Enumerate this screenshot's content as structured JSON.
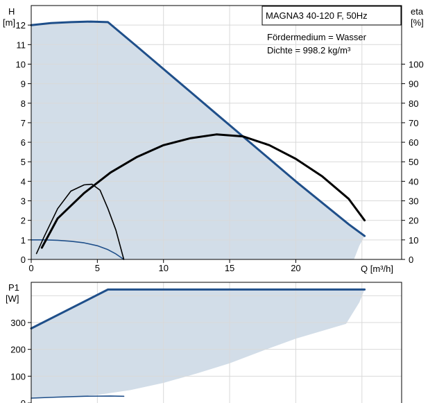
{
  "chart_data": [
    {
      "type": "line",
      "title": "MAGNA3 40-120 F, 50Hz",
      "annotations": [
        "Fördermedium = Wasser",
        "Dichte = 998.2 kg/m³"
      ],
      "xlabel": "Q [m³/h]",
      "ylabel": "H\n[m]",
      "ylabel_lines": [
        "H",
        "[m]"
      ],
      "y2label_lines": [
        "eta",
        "[%]"
      ],
      "xlim": [
        0,
        28
      ],
      "ylim": [
        0,
        13
      ],
      "y2lim": [
        0,
        130
      ],
      "xticks": [
        0,
        5,
        10,
        15,
        20
      ],
      "yticks": [
        0,
        1,
        2,
        3,
        4,
        5,
        6,
        7,
        8,
        9,
        10,
        11,
        12
      ],
      "y2ticks": [
        0,
        10,
        20,
        30,
        40,
        50,
        60,
        70,
        80,
        90,
        100
      ],
      "grid": true,
      "colors": {
        "area": "#d2dde8",
        "head": "#1f4f8a",
        "eta": "#000000",
        "grid": "#d9d9d9"
      },
      "operating_area": [
        [
          0,
          12.0
        ],
        [
          1.5,
          12.1
        ],
        [
          3,
          12.15
        ],
        [
          4.5,
          12.18
        ],
        [
          5.8,
          12.15
        ],
        [
          8,
          10.9
        ],
        [
          10,
          9.75
        ],
        [
          12,
          8.6
        ],
        [
          14,
          7.45
        ],
        [
          16,
          6.3
        ],
        [
          18,
          5.15
        ],
        [
          20,
          4.0
        ],
        [
          22,
          2.9
        ],
        [
          24,
          1.8
        ],
        [
          25.2,
          1.2
        ],
        [
          24.8,
          0.7
        ],
        [
          24.4,
          0
        ],
        [
          0,
          0
        ]
      ],
      "series": [
        {
          "role": "head-max",
          "x": [
            0,
            1.5,
            3,
            4.5,
            5.8,
            8,
            10,
            12,
            14,
            16,
            18,
            20,
            22,
            24,
            25.2
          ],
          "y": [
            12.0,
            12.1,
            12.15,
            12.18,
            12.15,
            10.9,
            9.75,
            8.6,
            7.45,
            6.3,
            5.15,
            4.0,
            2.9,
            1.8,
            1.2
          ]
        },
        {
          "role": "head-min",
          "x": [
            0,
            1,
            2,
            3,
            4,
            5,
            5.8,
            6.4,
            7.0
          ],
          "y": [
            1.0,
            1.0,
            0.98,
            0.93,
            0.85,
            0.7,
            0.5,
            0.28,
            0.0
          ]
        },
        {
          "role": "eta-max",
          "x": [
            0.8,
            2,
            4,
            6,
            8,
            10,
            12,
            14,
            16,
            18,
            20,
            22,
            24,
            25.2
          ],
          "y": [
            0.6,
            2.1,
            3.4,
            4.45,
            5.25,
            5.85,
            6.2,
            6.4,
            6.3,
            5.85,
            5.15,
            4.25,
            3.1,
            2.0
          ]
        },
        {
          "role": "eta-min",
          "x": [
            0.4,
            1,
            2,
            3,
            4,
            4.6,
            5.2,
            5.8,
            6.4,
            7.0
          ],
          "y": [
            0.3,
            1.2,
            2.6,
            3.5,
            3.82,
            3.85,
            3.55,
            2.6,
            1.5,
            0.0
          ]
        }
      ]
    },
    {
      "type": "line",
      "ylabel_lines": [
        "P1",
        "[W]"
      ],
      "xlim": [
        0,
        28
      ],
      "ylim": [
        0,
        450
      ],
      "yticks": [
        0,
        100,
        200,
        300
      ],
      "grid": true,
      "operating_area": [
        [
          0,
          278
        ],
        [
          5.8,
          423
        ],
        [
          25.2,
          423
        ],
        [
          24.8,
          375
        ],
        [
          23.8,
          295
        ],
        [
          20,
          240
        ],
        [
          17.5,
          195
        ],
        [
          15,
          148
        ],
        [
          12.5,
          110
        ],
        [
          10,
          75
        ],
        [
          7.5,
          48
        ],
        [
          5,
          30
        ],
        [
          2.5,
          20
        ],
        [
          0,
          18
        ]
      ],
      "series": [
        {
          "role": "p1-max",
          "x": [
            0,
            5.8,
            25.2
          ],
          "y": [
            278,
            423,
            423
          ]
        },
        {
          "role": "p1-min",
          "x": [
            0,
            2,
            4,
            6,
            7.0
          ],
          "y": [
            18,
            22,
            25,
            26,
            25
          ]
        }
      ]
    }
  ]
}
